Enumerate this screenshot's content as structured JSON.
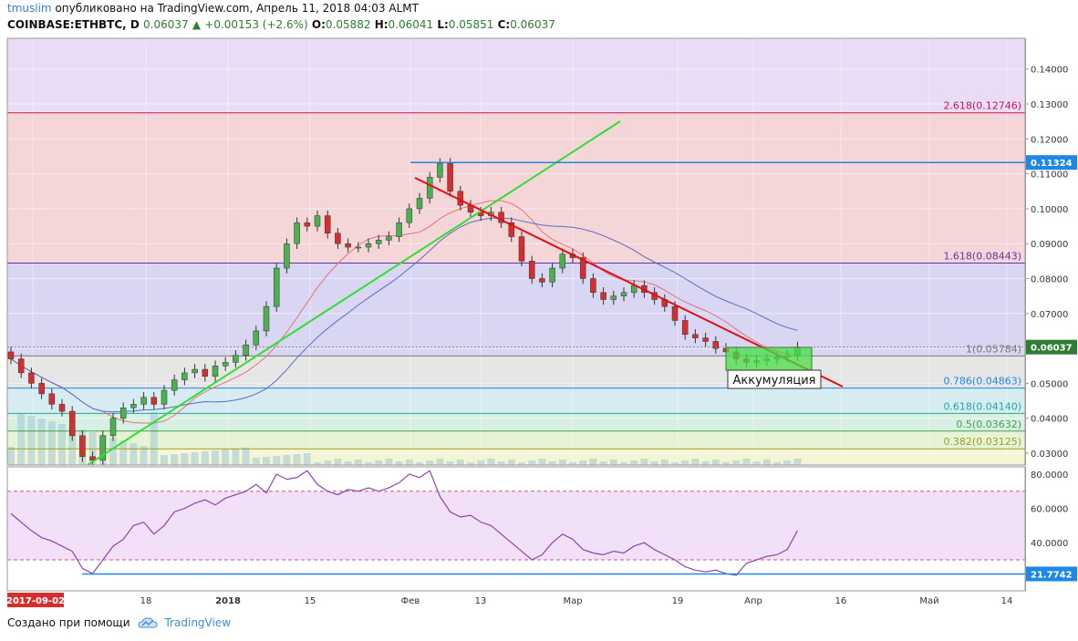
{
  "header": {
    "author": "tmuslim",
    "published_text": "опубликовано на TradingView.com, Апрель 11, 2018 04:03 ALMT",
    "symbol": "COINBASE:ETHBTC, D",
    "last": "0.06037",
    "arrow": "▲",
    "change": "+0.00153 (+2.6%)",
    "open_label": "O:",
    "open": "0.05882",
    "high_label": "H:",
    "high": "0.06041",
    "low_label": "L:",
    "low": "0.05851",
    "close_label": "C:",
    "close": "0.06037"
  },
  "footer": {
    "created_with": "Создано при помощи",
    "brand": "TradingView"
  },
  "chart_data": [
    {
      "type": "candlestick",
      "symbol": "COINBASE:ETHBTC",
      "interval": "D",
      "ylim": [
        0.025,
        0.147
      ],
      "y_ticks": [
        "0.14000",
        "0.13000",
        "0.12000",
        "0.11000",
        "0.10000",
        "0.09000",
        "0.08000",
        "0.07000",
        "0.06000",
        "0.05000",
        "0.04000",
        "0.03000"
      ],
      "x_ticks": [
        {
          "label": "2017-09-02",
          "highlight": true
        },
        {
          "label": "18"
        },
        {
          "label": "2018",
          "bold": true
        },
        {
          "label": "15"
        },
        {
          "label": "Фев"
        },
        {
          "label": "13"
        },
        {
          "label": "Мар"
        },
        {
          "label": "19"
        },
        {
          "label": "Апр"
        },
        {
          "label": "16"
        },
        {
          "label": "Май"
        },
        {
          "label": "14"
        }
      ],
      "fib_levels": [
        {
          "label": "2.618(0.12746)",
          "value": 0.12746,
          "color": "#c2185b"
        },
        {
          "label": "1.618(0.08443)",
          "value": 0.08443,
          "color": "#5e35b1"
        },
        {
          "label": "1(0.05784)",
          "value": 0.05784,
          "color": "#777777"
        },
        {
          "label": "0.786(0.04863)",
          "value": 0.04863,
          "color": "#1e88e5"
        },
        {
          "label": "0.618(0.04140)",
          "value": 0.0414,
          "color": "#26a69a"
        },
        {
          "label": "0.5(0.03632)",
          "value": 0.03632,
          "color": "#43a047"
        },
        {
          "label": "0.382(0.03125)",
          "value": 0.03125,
          "color": "#9e9d24"
        }
      ],
      "price_tags": [
        {
          "label": "0.11324",
          "value": 0.11324,
          "color": "#1e88e5"
        },
        {
          "label": "0.06037",
          "value": 0.06037,
          "color": "#2e7d32"
        }
      ],
      "annotation": "Аккумуляция",
      "close_series": [
        0.057,
        0.053,
        0.05,
        0.047,
        0.044,
        0.042,
        0.035,
        0.029,
        0.028,
        0.035,
        0.04,
        0.043,
        0.044,
        0.046,
        0.044,
        0.048,
        0.051,
        0.053,
        0.054,
        0.052,
        0.055,
        0.056,
        0.058,
        0.061,
        0.065,
        0.072,
        0.083,
        0.09,
        0.096,
        0.095,
        0.098,
        0.093,
        0.09,
        0.089,
        0.089,
        0.09,
        0.091,
        0.092,
        0.096,
        0.1,
        0.103,
        0.109,
        0.113,
        0.105,
        0.101,
        0.099,
        0.098,
        0.099,
        0.096,
        0.092,
        0.085,
        0.08,
        0.079,
        0.083,
        0.087,
        0.086,
        0.08,
        0.076,
        0.074,
        0.075,
        0.076,
        0.078,
        0.076,
        0.074,
        0.072,
        0.068,
        0.064,
        0.063,
        0.062,
        0.06,
        0.059,
        0.057,
        0.056,
        0.0565,
        0.057,
        0.0575,
        0.058,
        0.0604
      ]
    },
    {
      "type": "line",
      "name": "RSI",
      "ylim": [
        15,
        85
      ],
      "y_ticks": [
        "80.0000",
        "60.0000",
        "40.0000"
      ],
      "level_tag": {
        "label": "21.7742",
        "value": 21.7742
      },
      "values": [
        57,
        52,
        47,
        43,
        41,
        38,
        35,
        25,
        22,
        30,
        38,
        42,
        50,
        52,
        45,
        50,
        58,
        60,
        63,
        65,
        62,
        66,
        68,
        70,
        74,
        69,
        80,
        77,
        78,
        82,
        74,
        70,
        68,
        71,
        70,
        72,
        70,
        72,
        75,
        80,
        78,
        82,
        67,
        58,
        55,
        56,
        52,
        50,
        45,
        40,
        35,
        30,
        33,
        40,
        45,
        42,
        36,
        34,
        33,
        35,
        34,
        38,
        40,
        36,
        33,
        30,
        26,
        24,
        23,
        24,
        22,
        21,
        28,
        30,
        32,
        33,
        36,
        47
      ]
    }
  ]
}
